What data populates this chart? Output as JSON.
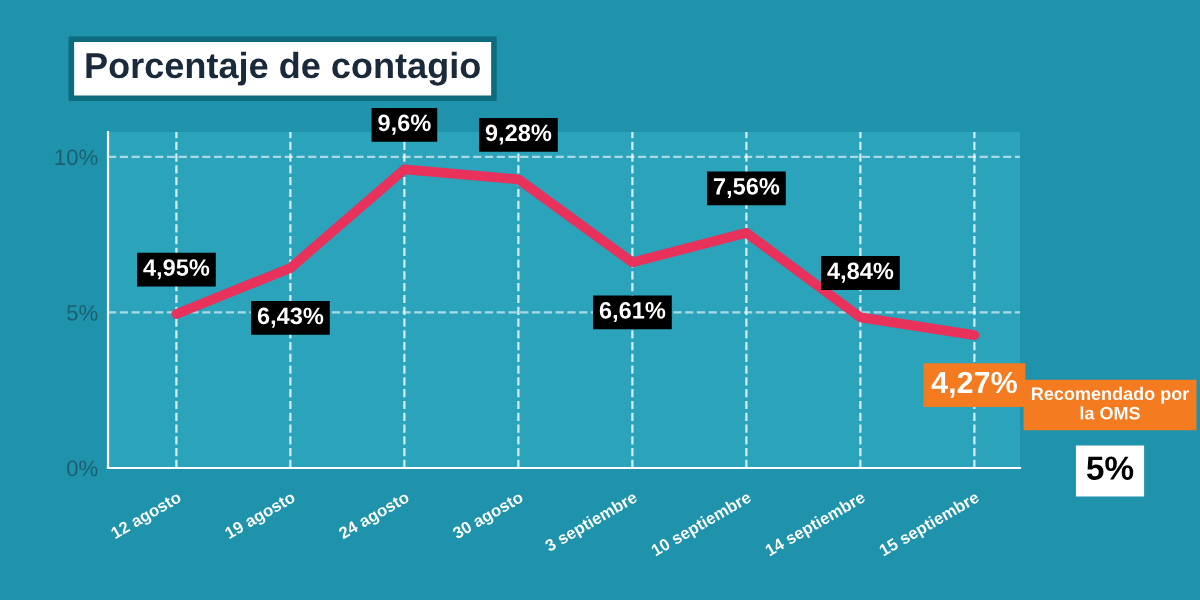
{
  "chart_data": {
    "type": "line",
    "title": "Porcentaje de contagio",
    "categories": [
      "12 agosto",
      "19 agosto",
      "24 agosto",
      "30 agosto",
      "3 septiembre",
      "10 septiembre",
      "14 septiembre",
      "15 septiembre"
    ],
    "series": [
      {
        "color": "#e8315b",
        "values": [
          4.95,
          6.43,
          9.6,
          9.28,
          6.61,
          7.56,
          4.84,
          4.27
        ],
        "value_labels": [
          "4,95%",
          "6,43%",
          "9,6%",
          "9,28%",
          "6,61%",
          "7,56%",
          "4,84%",
          "4,27%"
        ]
      }
    ],
    "ylim": [
      0,
      10.8
    ],
    "yticks": [
      {
        "value": 0,
        "label": "0%"
      },
      {
        "value": 5,
        "label": "5%"
      },
      {
        "value": 10,
        "label": "10%"
      }
    ],
    "grid": true,
    "marker": "none",
    "line_style": "solid",
    "annotations": [
      "Recomendado por la OMS",
      "5%"
    ]
  }
}
